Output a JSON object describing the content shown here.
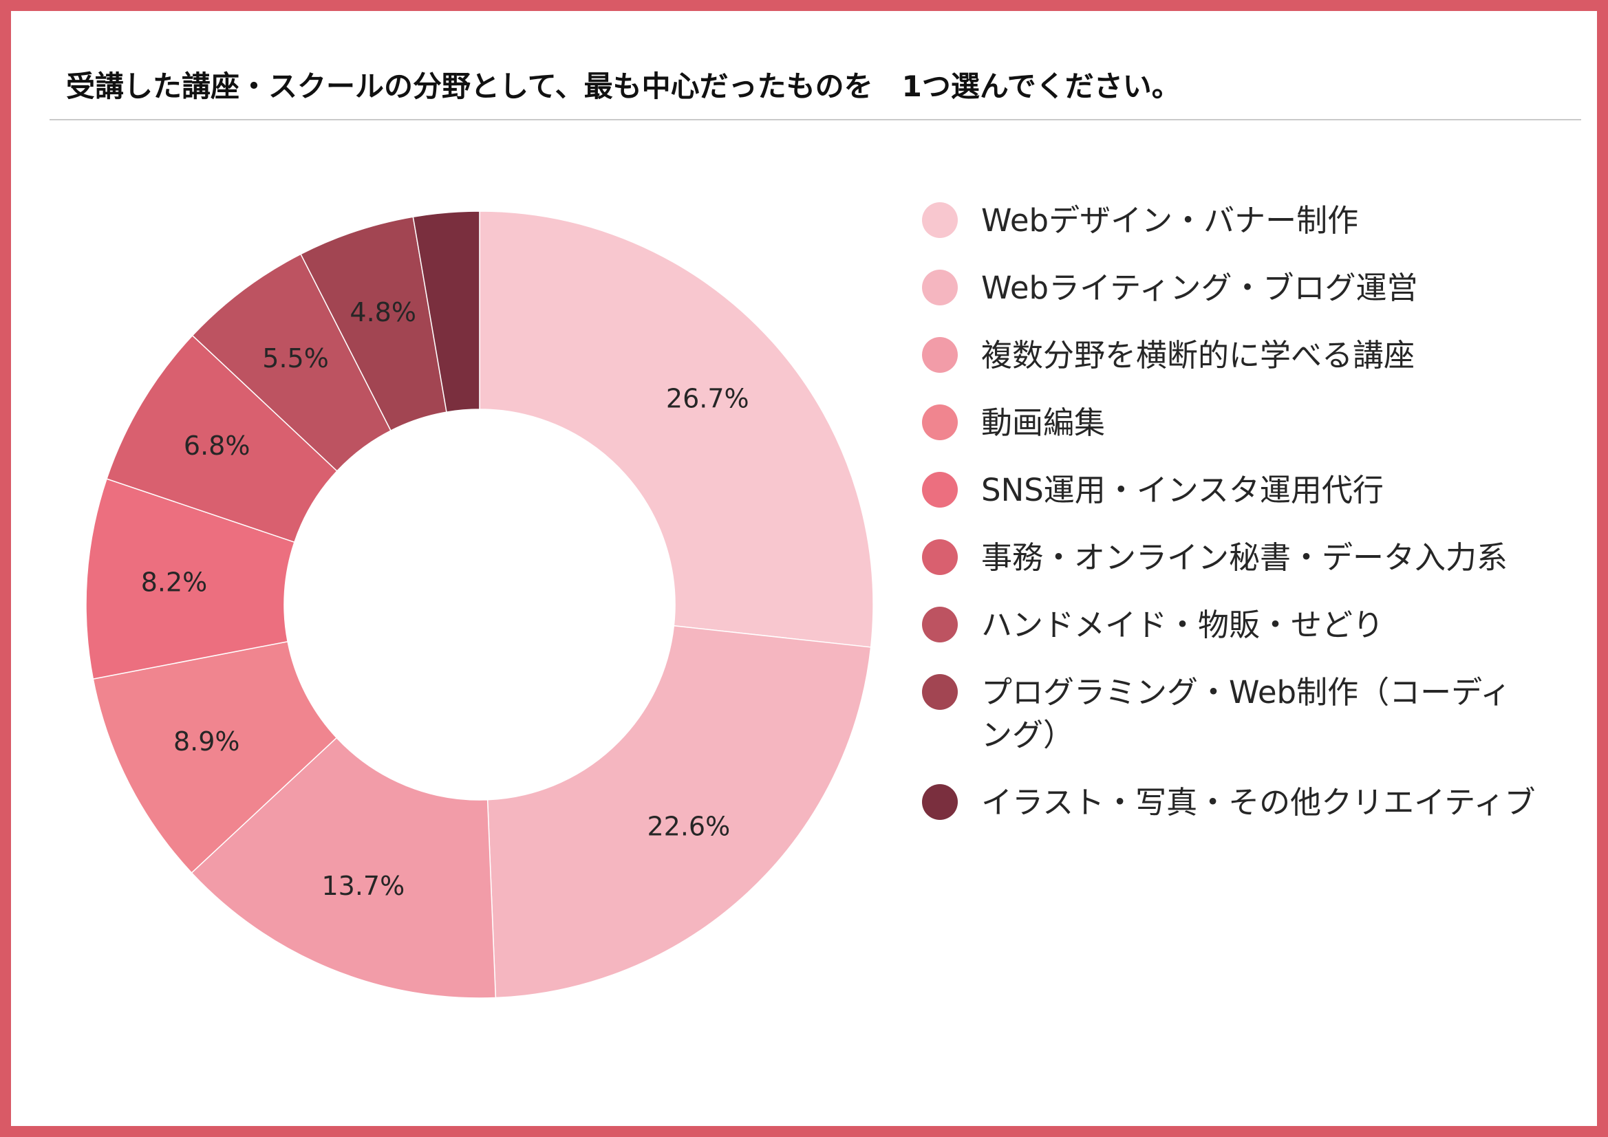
{
  "title": "受講した講座・スクールの分野として、最も中心だったものを　1つ選んでください。",
  "colors": {
    "border": "#d95a66",
    "rule": "#c9c9c9"
  },
  "chart_data": {
    "type": "pie",
    "donut": true,
    "title": "受講した講座・スクールの分野として、最も中心だったものを　1つ選んでください。",
    "legend_position": "right",
    "unit": "%",
    "slices": [
      {
        "label": "Webデザイン・バナー制作",
        "value": 26.7,
        "display": "26.7%",
        "color": "#f8c7cf"
      },
      {
        "label": "Webライティング・ブログ運営",
        "value": 22.6,
        "display": "22.6%",
        "color": "#f5b6c0"
      },
      {
        "label": "複数分野を横断的に学べる講座",
        "value": 13.7,
        "display": "13.7%",
        "color": "#f29ca8"
      },
      {
        "label": "動画編集",
        "value": 8.9,
        "display": "8.9%",
        "color": "#f0858f"
      },
      {
        "label": "SNS運用・インスタ運用代行",
        "value": 8.2,
        "display": "8.2%",
        "color": "#ec6f7f"
      },
      {
        "label": "事務・オンライン秘書・データ入力系",
        "value": 6.8,
        "display": "6.8%",
        "color": "#d9606f"
      },
      {
        "label": "ハンドメイド・物販・せどり",
        "value": 5.5,
        "display": "5.5%",
        "color": "#bd5361"
      },
      {
        "label": "プログラミング・Web制作（コーディング）",
        "value": 4.8,
        "display": "4.8%",
        "color": "#a24552"
      },
      {
        "label": "イラスト・写真・その他クリエイティブ",
        "value": 2.7,
        "display": "",
        "color": "#7a2f3e"
      }
    ]
  }
}
